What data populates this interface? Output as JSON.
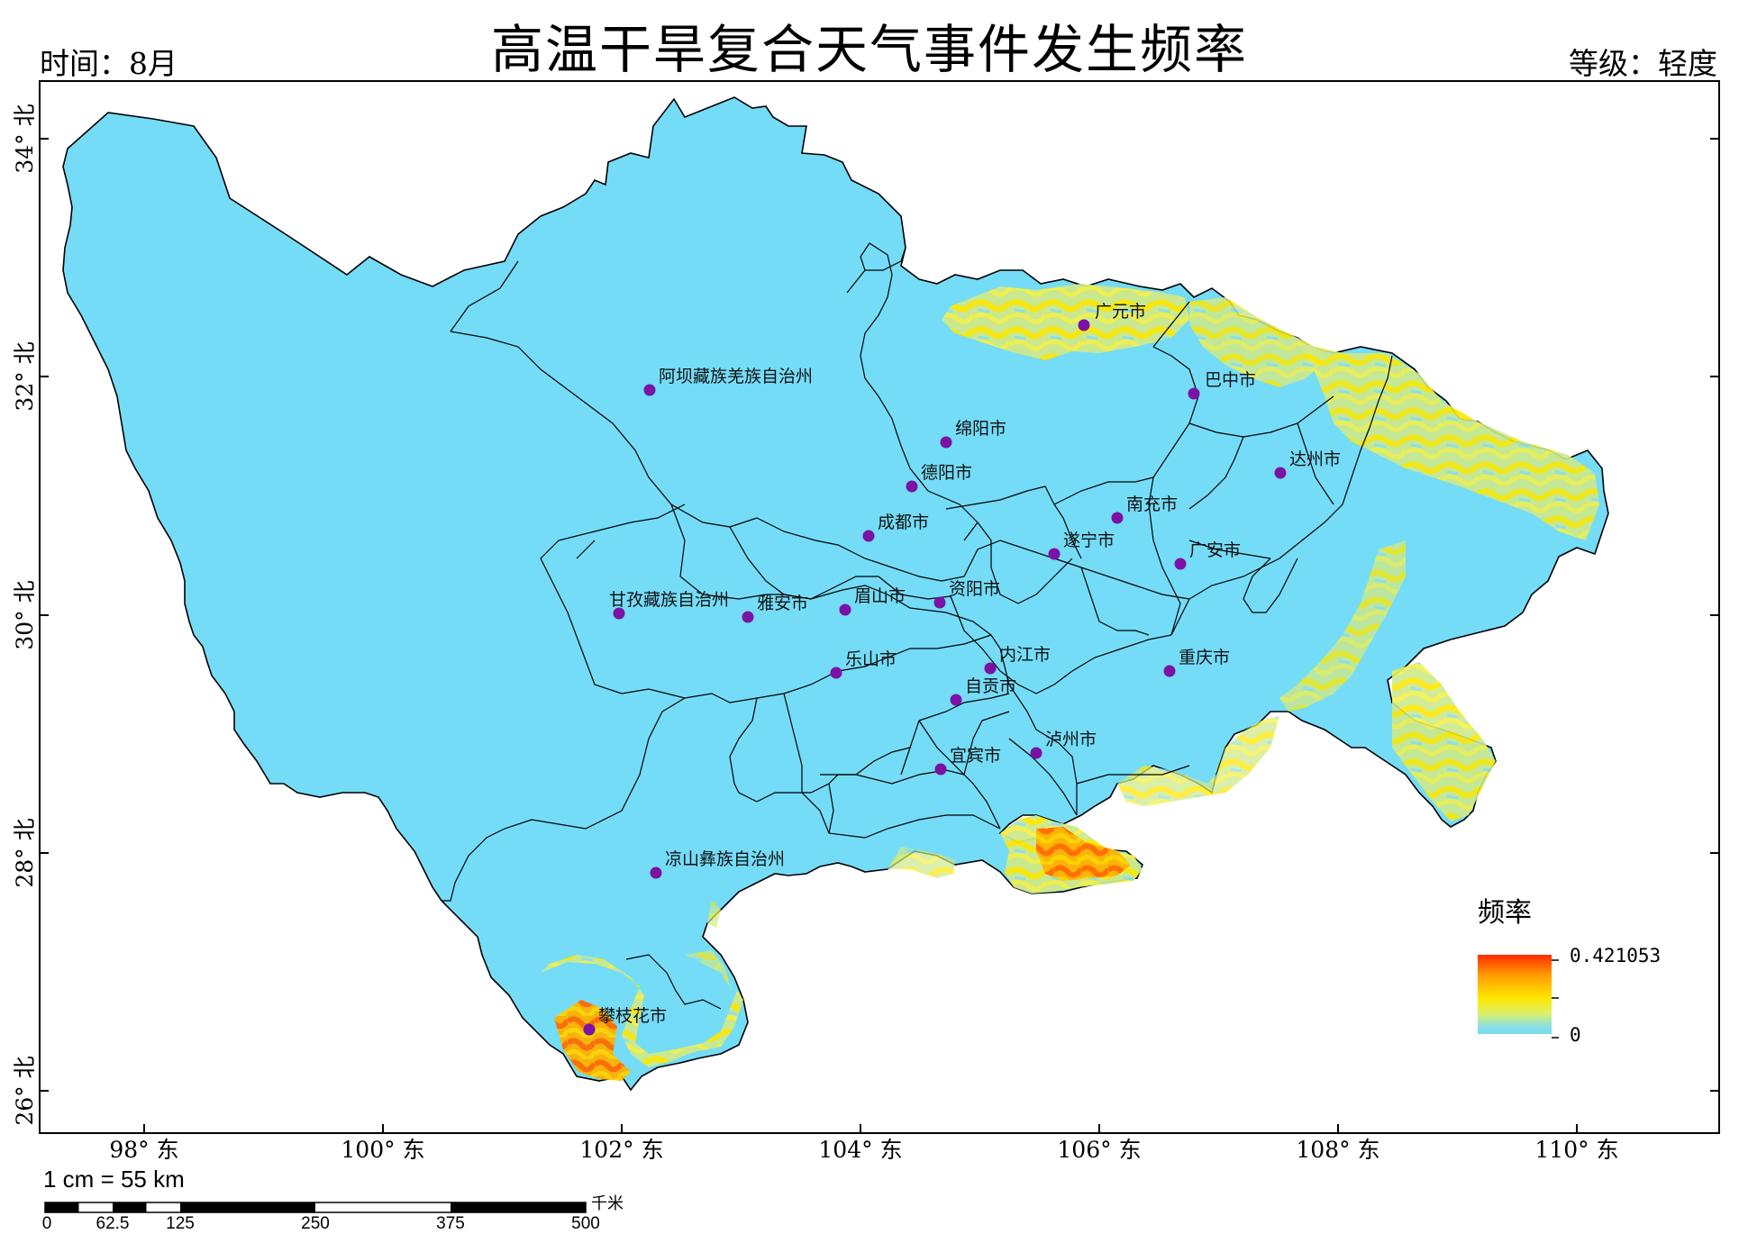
{
  "title": "高温干旱复合天气事件发生频率",
  "time_label": "时间：8月",
  "grade_label": "等级：轻度",
  "colors": {
    "background_region": "#74dcf7",
    "low": "#74dcf5",
    "mid": "#ffe800",
    "high": "#ff2a00",
    "city_dot": "#7b12a5"
  },
  "latitude_labels": [
    "34° 北",
    "32° 北",
    "30° 北",
    "28° 北",
    "26° 北"
  ],
  "longitude_labels": [
    "98° 东",
    "100° 东",
    "102° 东",
    "104° 东",
    "106° 东",
    "108° 东",
    "110° 东"
  ],
  "cities": [
    {
      "name": "广元市"
    },
    {
      "name": "巴中市"
    },
    {
      "name": "阿坝藏族羌族自治州"
    },
    {
      "name": "绵阳市"
    },
    {
      "name": "达州市"
    },
    {
      "name": "德阳市"
    },
    {
      "name": "南充市"
    },
    {
      "name": "成都市"
    },
    {
      "name": "遂宁市"
    },
    {
      "name": "广安市"
    },
    {
      "name": "甘孜藏族自治州"
    },
    {
      "name": "雅安市"
    },
    {
      "name": "眉山市"
    },
    {
      "name": "资阳市"
    },
    {
      "name": "乐山市"
    },
    {
      "name": "内江市"
    },
    {
      "name": "自贡市"
    },
    {
      "name": "重庆市"
    },
    {
      "name": "泸州市"
    },
    {
      "name": "宜宾市"
    },
    {
      "name": "凉山彝族自治州"
    },
    {
      "name": "攀枝花市"
    }
  ],
  "legend": {
    "title": "频率",
    "max": "0.421053",
    "min": "0"
  },
  "scale_bar": {
    "ratio": "1 cm = 55 km",
    "unit": "千米",
    "ticks": [
      "0",
      "62.5",
      "125",
      "250",
      "375",
      "500"
    ]
  }
}
